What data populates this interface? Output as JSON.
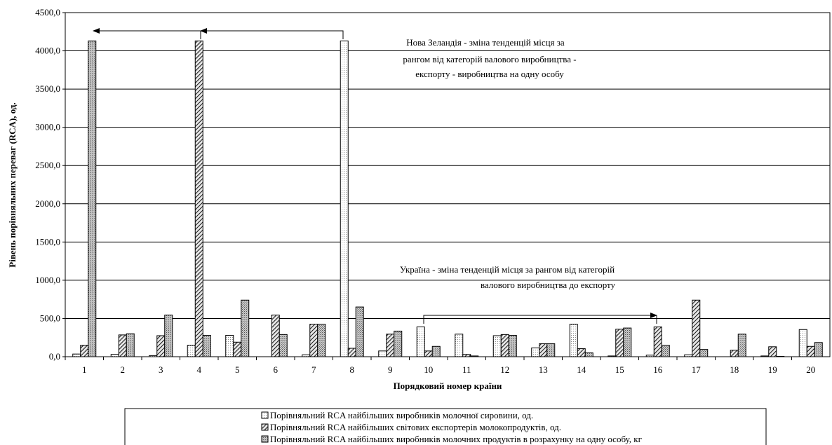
{
  "chart_data": {
    "type": "bar",
    "xlabel": "Порядковий номер країни",
    "ylabel": "Рівень порівняльних переваг (RCA), од.",
    "ylim": [
      0,
      4500
    ],
    "yticks": [
      "0,0",
      "500,0",
      "1000,0",
      "1500,0",
      "2000,0",
      "2500,0",
      "3000,0",
      "3500,0",
      "4000,0",
      "4500,0"
    ],
    "categories": [
      "1",
      "2",
      "3",
      "4",
      "5",
      "6",
      "7",
      "8",
      "9",
      "10",
      "11",
      "12",
      "13",
      "14",
      "15",
      "16",
      "17",
      "18",
      "19",
      "20"
    ],
    "grid": true,
    "legend_position": "bottom",
    "series": [
      {
        "name": "Порівняльний RCA найбільших виробників молочної сировини, од.",
        "pattern": "dots",
        "values": [
          35,
          30,
          15,
          150,
          280,
          0,
          25,
          4130,
          75,
          390,
          295,
          275,
          115,
          425,
          10,
          20,
          25,
          0,
          10,
          355
        ]
      },
      {
        "name": "Порівняльний RCA найбільших світових експортерів молокопродуктів, од.",
        "pattern": "diagonal",
        "values": [
          150,
          285,
          275,
          4130,
          190,
          545,
          425,
          110,
          295,
          75,
          30,
          290,
          170,
          105,
          360,
          390,
          740,
          85,
          130,
          135
        ]
      },
      {
        "name": "Порівняльний RCA найбільших виробників молочних продуктів в розрахунку на одну особу, кг",
        "pattern": "dense",
        "values": [
          4130,
          300,
          545,
          280,
          740,
          290,
          425,
          650,
          335,
          135,
          10,
          280,
          170,
          50,
          375,
          150,
          95,
          295,
          5,
          185
        ]
      }
    ],
    "annotations": {
      "nz": [
        "Нова Зеландія - зміна тенденцій місця за",
        "рангом від категорій валового виробництва -",
        "експорту - виробництва на одну особу"
      ],
      "ua": [
        "Україна - зміна тенденцій місця за рангом від категорій",
        "валового виробництва до експорту"
      ]
    }
  }
}
